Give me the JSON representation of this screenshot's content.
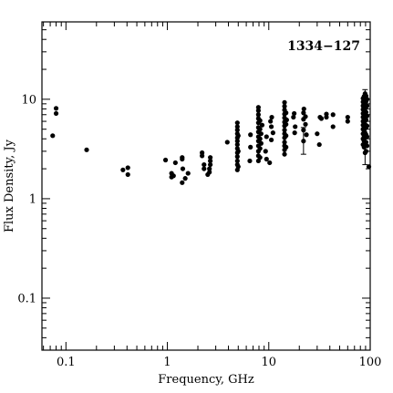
{
  "chart_data": {
    "type": "scatter",
    "title": "1334−127",
    "xlabel": "Frequency, GHz",
    "ylabel": "Flux Density, Jy",
    "x_scale": "log",
    "y_scale": "log",
    "xlim": [
      0.058,
      100
    ],
    "ylim": [
      0.03,
      60
    ],
    "x_ticks": [
      {
        "v": 0.1,
        "label": "0.1"
      },
      {
        "v": 1,
        "label": "1"
      },
      {
        "v": 10,
        "label": "10"
      },
      {
        "v": 100,
        "label": "100"
      }
    ],
    "y_ticks": [
      {
        "v": 0.1,
        "label": "0.1"
      },
      {
        "v": 1,
        "label": "1"
      },
      {
        "v": 10,
        "label": "10"
      }
    ],
    "grid": false,
    "marker_color": "#000000",
    "points": [
      [
        0.074,
        4.3
      ],
      [
        0.08,
        7.2
      ],
      [
        0.08,
        8.1
      ],
      [
        0.16,
        3.1
      ],
      [
        0.365,
        1.95
      ],
      [
        0.408,
        1.75
      ],
      [
        0.408,
        2.05
      ],
      [
        0.96,
        2.45
      ],
      [
        1.1,
        1.8
      ],
      [
        1.1,
        1.65
      ],
      [
        1.15,
        1.7
      ],
      [
        1.2,
        2.3
      ],
      [
        1.4,
        2.6
      ],
      [
        1.4,
        2.5
      ],
      [
        1.42,
        2.0
      ],
      [
        1.4,
        1.45
      ],
      [
        1.5,
        1.6
      ],
      [
        1.6,
        1.8
      ],
      [
        2.2,
        2.9
      ],
      [
        2.2,
        2.7
      ],
      [
        2.3,
        2.0
      ],
      [
        2.3,
        2.2
      ],
      [
        2.5,
        1.75
      ],
      [
        2.6,
        1.85
      ],
      [
        2.6,
        2.0
      ],
      [
        2.65,
        2.2
      ],
      [
        2.65,
        2.4
      ],
      [
        2.65,
        2.6
      ],
      [
        3.9,
        3.7
      ],
      [
        4.9,
        1.95
      ],
      [
        4.9,
        2.2
      ],
      [
        4.9,
        2.4
      ],
      [
        4.9,
        2.65
      ],
      [
        4.9,
        2.9
      ],
      [
        4.9,
        3.2
      ],
      [
        4.9,
        3.5
      ],
      [
        4.9,
        3.8
      ],
      [
        4.9,
        4.1
      ],
      [
        4.9,
        4.5
      ],
      [
        4.9,
        4.9
      ],
      [
        4.9,
        5.3
      ],
      [
        4.9,
        5.8
      ],
      [
        5.0,
        2.1
      ],
      [
        5.0,
        3.0
      ],
      [
        5.0,
        4.3
      ],
      [
        6.5,
        2.4
      ],
      [
        6.6,
        3.3
      ],
      [
        6.6,
        4.4
      ],
      [
        7.9,
        2.4
      ],
      [
        7.9,
        2.7
      ],
      [
        7.9,
        3.0
      ],
      [
        7.9,
        3.4
      ],
      [
        7.9,
        3.8
      ],
      [
        7.9,
        4.2
      ],
      [
        7.9,
        4.7
      ],
      [
        7.9,
        5.2
      ],
      [
        7.9,
        5.8
      ],
      [
        7.9,
        6.4
      ],
      [
        7.9,
        7.0
      ],
      [
        7.9,
        7.7
      ],
      [
        7.9,
        8.3
      ],
      [
        8.2,
        2.6
      ],
      [
        8.2,
        3.2
      ],
      [
        8.2,
        4.0
      ],
      [
        8.2,
        5.0
      ],
      [
        8.2,
        6.1
      ],
      [
        8.4,
        3.6
      ],
      [
        8.4,
        4.5
      ],
      [
        8.6,
        5.5
      ],
      [
        9.3,
        3.0
      ],
      [
        9.5,
        2.5
      ],
      [
        9.5,
        4.2
      ],
      [
        10.2,
        2.3
      ],
      [
        10.4,
        6.0
      ],
      [
        10.6,
        5.3
      ],
      [
        10.6,
        3.9
      ],
      [
        10.7,
        6.6
      ],
      [
        11.0,
        4.6
      ],
      [
        14.3,
        2.8
      ],
      [
        14.3,
        3.1
      ],
      [
        14.3,
        3.4
      ],
      [
        14.3,
        3.7
      ],
      [
        14.3,
        4.1
      ],
      [
        14.3,
        4.5
      ],
      [
        14.3,
        4.9
      ],
      [
        14.3,
        5.4
      ],
      [
        14.3,
        5.9
      ],
      [
        14.3,
        6.5
      ],
      [
        14.3,
        7.1
      ],
      [
        14.3,
        7.8
      ],
      [
        14.3,
        8.5
      ],
      [
        14.3,
        9.3
      ],
      [
        14.8,
        3.3
      ],
      [
        14.8,
        4.3
      ],
      [
        14.8,
        5.6
      ],
      [
        14.8,
        7.3
      ],
      [
        15.0,
        6.2
      ],
      [
        17.5,
        6.6
      ],
      [
        17.8,
        7.2
      ],
      [
        18.0,
        4.6
      ],
      [
        18.2,
        5.3
      ],
      [
        22.0,
        3.8
      ],
      [
        22.0,
        4.9
      ],
      [
        22.0,
        6.3
      ],
      [
        22.0,
        7.3
      ],
      [
        22.2,
        8.0
      ],
      [
        23.0,
        6.7
      ],
      [
        23.0,
        5.6
      ],
      [
        23.5,
        4.4
      ],
      [
        30.0,
        4.5
      ],
      [
        31.5,
        3.5
      ],
      [
        32.0,
        6.6
      ],
      [
        33.0,
        6.4
      ],
      [
        37.0,
        7.1
      ],
      [
        37.0,
        6.6
      ],
      [
        43.0,
        7.0
      ],
      [
        43.0,
        5.3
      ],
      [
        60.0,
        6.6
      ],
      [
        60.0,
        6.0
      ],
      [
        85.0,
        3.5
      ],
      [
        85.0,
        4.0
      ],
      [
        85.0,
        4.5
      ],
      [
        85.0,
        5.0
      ],
      [
        85.0,
        5.5
      ],
      [
        85.0,
        6.0
      ],
      [
        85.0,
        6.6
      ],
      [
        85.0,
        7.2
      ],
      [
        85.0,
        7.9
      ],
      [
        85.0,
        8.6
      ],
      [
        85.0,
        9.4
      ],
      [
        85.0,
        10.2
      ],
      [
        87.0,
        3.3
      ],
      [
        87.0,
        3.8
      ],
      [
        87.0,
        4.3
      ],
      [
        87.0,
        4.8
      ],
      [
        87.0,
        5.3
      ],
      [
        87.0,
        5.8
      ],
      [
        87.0,
        6.3
      ],
      [
        87.0,
        6.9
      ],
      [
        87.0,
        7.5
      ],
      [
        87.0,
        8.2
      ],
      [
        87.0,
        9.0
      ],
      [
        87.0,
        9.8
      ],
      [
        87.0,
        10.7
      ],
      [
        89.0,
        2.9
      ],
      [
        89.0,
        3.6
      ],
      [
        89.0,
        4.1
      ],
      [
        89.0,
        4.6
      ],
      [
        89.0,
        5.1
      ],
      [
        89.0,
        5.6
      ],
      [
        89.0,
        6.1
      ],
      [
        89.0,
        6.7
      ],
      [
        89.0,
        7.3
      ],
      [
        89.0,
        8.0
      ],
      [
        89.0,
        8.8
      ],
      [
        89.0,
        9.6
      ],
      [
        89.0,
        10.5
      ],
      [
        89.0,
        11.4
      ],
      [
        91.0,
        3.0
      ],
      [
        91.0,
        3.7
      ],
      [
        91.0,
        4.4
      ],
      [
        91.0,
        5.2
      ],
      [
        91.0,
        6.2
      ],
      [
        91.0,
        7.4
      ],
      [
        91.0,
        8.4
      ],
      [
        91.0,
        9.5
      ],
      [
        91.0,
        10.8
      ],
      [
        93.0,
        3.4
      ],
      [
        93.0,
        4.2
      ],
      [
        93.0,
        5.4
      ],
      [
        93.0,
        6.8
      ],
      [
        93.0,
        8.6
      ],
      [
        93.0,
        10.0
      ],
      [
        97.0,
        2.1
      ]
    ],
    "error_bars": [
      {
        "x": 22.0,
        "y": 4.0,
        "low": 2.8,
        "high": 5.2
      },
      {
        "x": 89.0,
        "y": 8.0,
        "low": 2.2,
        "high": 12.5
      }
    ]
  }
}
